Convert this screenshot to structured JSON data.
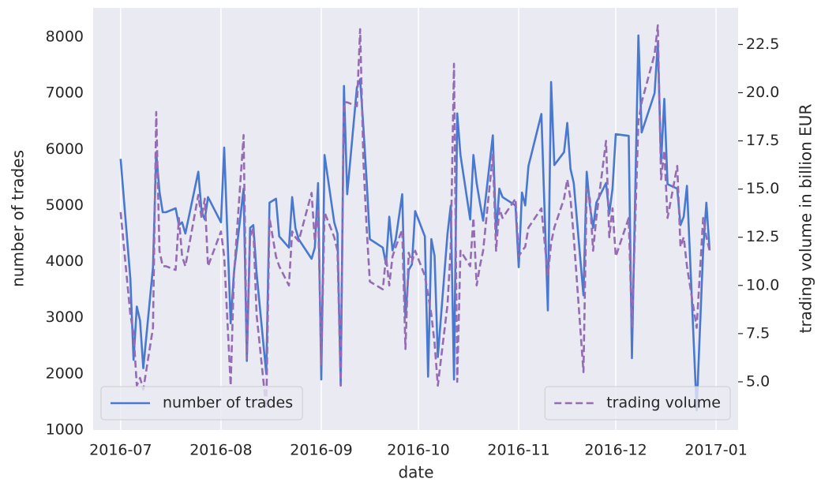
{
  "chart_data": {
    "type": "line",
    "x_label": "date",
    "y_label": "number of trades",
    "y2_label": "trading volume in billion EUR",
    "xlim": [
      -8.5,
      190.8
    ],
    "xticks": [
      {
        "value": 0,
        "label": "2016-07"
      },
      {
        "value": 31,
        "label": "2016-08"
      },
      {
        "value": 62,
        "label": "2016-09"
      },
      {
        "value": 92,
        "label": "2016-10"
      },
      {
        "value": 123,
        "label": "2016-11"
      },
      {
        "value": 153,
        "label": "2016-12"
      },
      {
        "value": 184,
        "label": "2017-01"
      }
    ],
    "ylim": [
      1000,
      8520
    ],
    "yticks": [
      1000,
      2000,
      3000,
      4000,
      5000,
      6000,
      7000,
      8000
    ],
    "y2lim": [
      2.5,
      24.4
    ],
    "y2ticks": [
      {
        "value": 5,
        "label": "5.0"
      },
      7.5,
      {
        "value": 10,
        "label": "10.0"
      },
      12.5,
      {
        "value": 15,
        "label": "15.0"
      },
      17.5,
      {
        "value": 20,
        "label": "20.0"
      },
      22.5
    ],
    "grid": "x",
    "x": [
      0,
      3,
      4,
      5,
      6,
      7,
      10,
      11,
      12,
      13,
      14,
      17,
      18,
      19,
      20,
      24,
      25,
      26,
      27,
      31,
      32,
      34,
      35,
      38,
      39,
      40,
      41,
      42,
      45,
      46,
      48,
      49,
      52,
      53,
      54,
      55,
      59,
      60,
      61,
      62,
      63,
      66,
      67,
      68,
      69,
      70,
      73,
      74,
      75,
      76,
      77,
      81,
      82,
      83,
      84,
      85,
      87,
      88,
      89,
      90,
      91,
      94,
      95,
      96,
      97,
      98,
      101,
      102,
      103,
      104,
      105,
      108,
      109,
      110,
      111,
      112,
      115,
      116,
      117,
      118,
      122,
      123,
      124,
      125,
      126,
      130,
      132,
      133,
      134,
      137,
      138,
      139,
      140,
      143,
      144,
      145,
      146,
      147,
      150,
      151,
      152,
      153,
      157,
      158,
      160,
      161,
      165,
      166,
      167,
      168,
      169,
      172,
      173,
      174,
      175,
      178,
      180,
      181,
      182
    ],
    "series": [
      {
        "name": "number of trades",
        "color": "#4878d0",
        "dash": false,
        "legend": "lower left",
        "values": [
          5830,
          3700,
          2250,
          3200,
          2950,
          2100,
          3900,
          5950,
          5250,
          4880,
          4880,
          4950,
          4650,
          4700,
          4500,
          5600,
          4900,
          4750,
          5150,
          4700,
          6030,
          2900,
          3800,
          5300,
          2230,
          4600,
          4650,
          3800,
          2000,
          5050,
          5120,
          4450,
          4250,
          5150,
          4600,
          4400,
          4050,
          4250,
          5400,
          1900,
          5900,
          4700,
          4500,
          1800,
          7130,
          5200,
          7100,
          7250,
          6400,
          5450,
          4400,
          4250,
          3950,
          4800,
          4200,
          4400,
          5200,
          3000,
          3850,
          3950,
          4900,
          4450,
          1950,
          4400,
          4100,
          2300,
          4500,
          5000,
          1900,
          6640,
          5900,
          4750,
          5900,
          5400,
          5050,
          4730,
          6250,
          4500,
          5300,
          5150,
          5000,
          3900,
          5230,
          5000,
          5700,
          6630,
          3130,
          7200,
          5720,
          5950,
          6470,
          5650,
          5400,
          3400,
          5600,
          5000,
          4600,
          5050,
          5400,
          4850,
          5300,
          6270,
          6240,
          2280,
          8030,
          6300,
          7000,
          7900,
          5750,
          6900,
          5380,
          5300,
          4650,
          4800,
          5350,
          1350,
          4200,
          5050,
          4200
        ]
      },
      {
        "name": "trading volume",
        "color": "#956cb4",
        "dash": true,
        "axis": "y2",
        "legend": "lower right",
        "values": [
          13.8,
          8.5,
          7.5,
          4.8,
          5.2,
          4.6,
          7.8,
          19,
          11.8,
          11,
          11,
          10.8,
          13.5,
          11.5,
          11,
          14.7,
          13.5,
          14.5,
          11,
          12.8,
          11.5,
          4.8,
          10.5,
          17.8,
          6.2,
          12.5,
          13,
          8.5,
          3.6,
          13.5,
          11.5,
          11,
          10,
          12.8,
          12.5,
          12.3,
          14.8,
          12.3,
          14,
          5.9,
          13.8,
          12.5,
          11.8,
          4.8,
          19.5,
          19.5,
          19.3,
          23.3,
          16.5,
          13,
          10.2,
          9.8,
          11.5,
          10,
          11.5,
          12,
          12.9,
          6.7,
          11.7,
          11.2,
          11.8,
          10.5,
          9.5,
          8.5,
          7,
          4.8,
          9,
          12,
          21.5,
          5,
          11.8,
          11,
          13.5,
          10,
          11,
          11.8,
          16.8,
          11.8,
          14,
          13.5,
          14.5,
          11.5,
          11.8,
          12,
          13,
          14,
          10.5,
          12.2,
          13,
          14.5,
          15.5,
          14.5,
          12.5,
          5.5,
          15,
          14.5,
          11.8,
          13.5,
          17.5,
          12.5,
          14,
          11.5,
          13.5,
          7.8,
          18.5,
          19.5,
          22,
          23.5,
          15.5,
          17,
          13.5,
          16.2,
          12,
          12.5,
          11,
          7.8,
          13.5,
          12.5,
          11.8
        ]
      }
    ]
  }
}
